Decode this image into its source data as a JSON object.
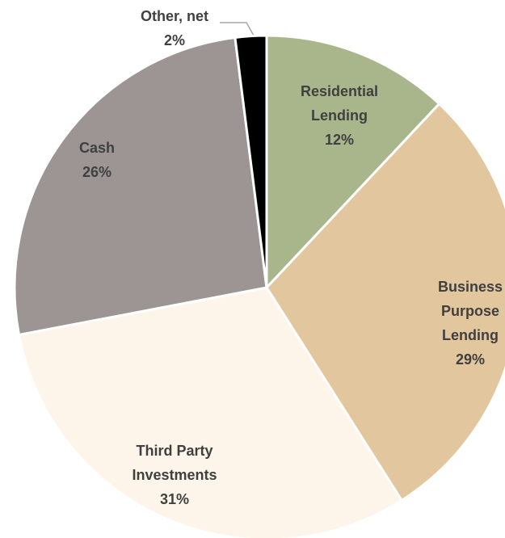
{
  "chart_data": {
    "type": "pie",
    "categories": [
      "Residential Lending",
      "Business Purpose Lending",
      "Third Party Investments",
      "Cash",
      "Other, net"
    ],
    "values": [
      12,
      29,
      31,
      26,
      2
    ],
    "value_labels": [
      "12%",
      "29%",
      "31%",
      "26%",
      "2%"
    ],
    "colors": [
      "#a9b68c",
      "#e2c79e",
      "#fdf5ea",
      "#9c9594",
      "#000000"
    ]
  }
}
